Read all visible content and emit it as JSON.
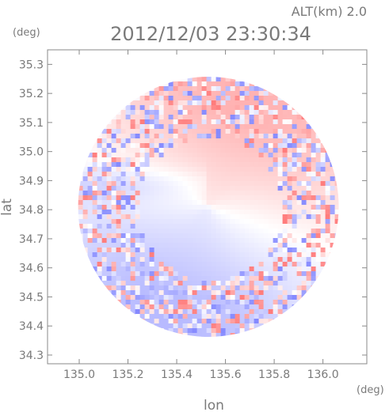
{
  "header": {
    "altitude": "ALT(km)  2.0",
    "timestamp": "2012/12/03 23:30:34"
  },
  "chart_data": {
    "type": "heatmap",
    "title": "2012/12/03 23:30:34",
    "subtitle": "ALT(km)  2.0",
    "xlabel": "lon",
    "ylabel": "lat",
    "x_unit": "(deg)",
    "y_unit": "(deg)",
    "xlim": [
      134.87,
      136.18
    ],
    "ylim": [
      34.27,
      35.35
    ],
    "x_ticks": [
      "135.0",
      "135.2",
      "135.4",
      "135.6",
      "135.8",
      "136.0"
    ],
    "y_ticks": [
      "34.3",
      "34.4",
      "34.5",
      "34.6",
      "34.7",
      "34.8",
      "34.9",
      "35.0",
      "35.1",
      "35.2",
      "35.3"
    ],
    "radar_center": {
      "lon": 135.53,
      "lat": 34.81
    },
    "radar_radius_deg": 0.54,
    "grid": false,
    "colors": {
      "positive": "#ee7a7a",
      "negative": "#8a8cee",
      "neutral": "#ffffff",
      "axis": "#8a8a8a"
    }
  }
}
